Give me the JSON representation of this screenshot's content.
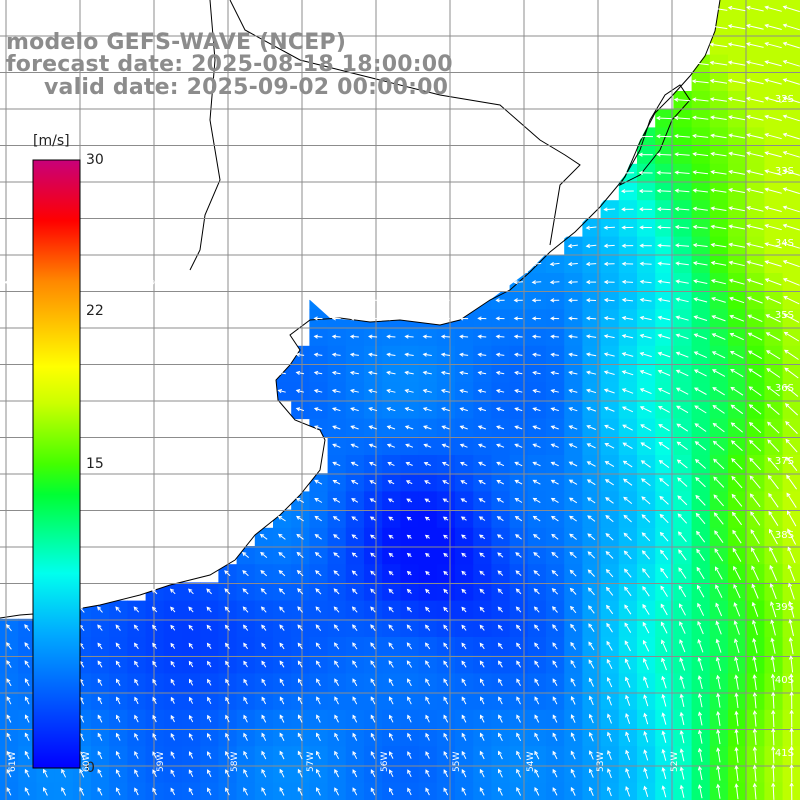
{
  "title": {
    "line1": "modelo GEFS-WAVE (NCEP)",
    "line2": "forecast date: 2025-08-18 18:00:00",
    "line3": "valid date: 2025-09-02 00:00:00"
  },
  "colorbar": {
    "unit": "[m/s]",
    "ticks": [
      "30",
      "22",
      "15",
      "0"
    ],
    "tick_values": [
      30,
      22,
      15,
      0
    ],
    "range": [
      0,
      30
    ]
  },
  "lat_labels": [
    "32S",
    "33S",
    "34S",
    "35S",
    "36S",
    "37S",
    "38S",
    "39S",
    "40S",
    "41S"
  ],
  "lon_labels": [
    "61W",
    "60W",
    "59W",
    "58W",
    "57W",
    "56W",
    "55W",
    "54W",
    "53W",
    "52W"
  ],
  "colors": {
    "grid": "#8c8c8c",
    "coast": "#000000",
    "land": "#ffffff",
    "arrow": "#ffffff",
    "title": "#8c8c8c"
  }
}
